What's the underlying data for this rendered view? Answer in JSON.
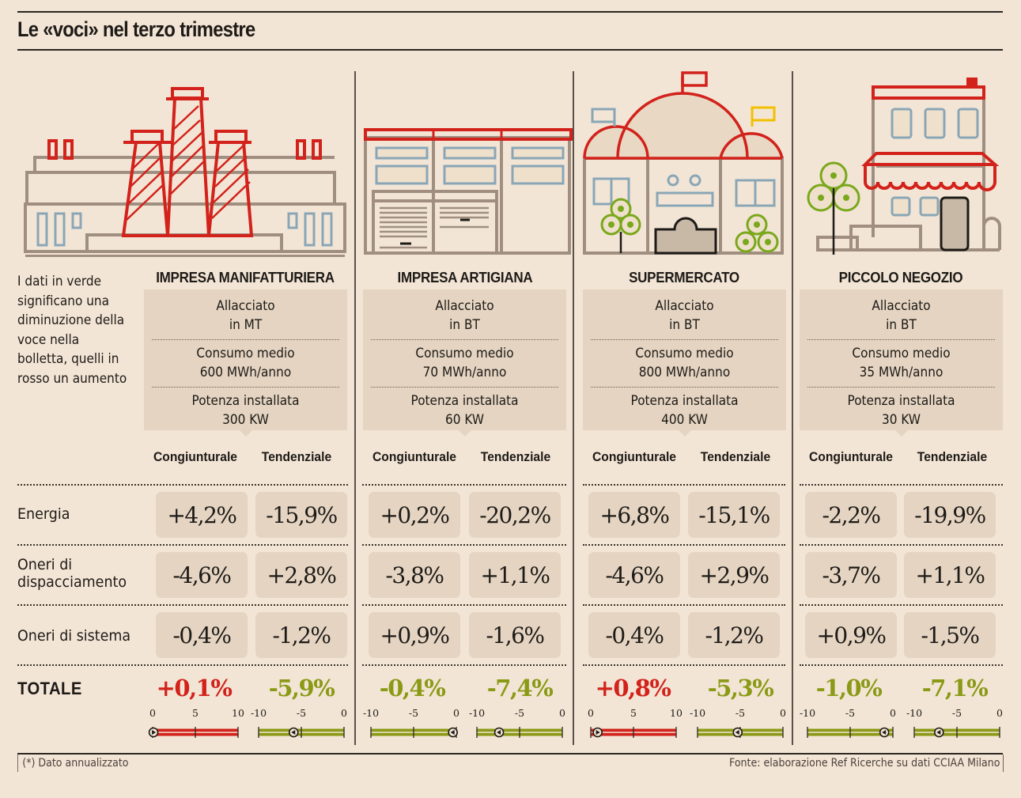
{
  "title": "Le «voci» nel terzo trimestre",
  "legend_note": "I dati in verde significano una diminuzione della voce nella bolletta, quelli in rosso un aumento",
  "colors": {
    "increase": "#d2221b",
    "decrease": "#8a9a16",
    "cell_bg": "#e4d4c1",
    "background": "#f3e5d5"
  },
  "column_headers": {
    "congiunturale": "Congiunturale",
    "tendenziale": "Tendenziale"
  },
  "rows": [
    "Energia",
    "Oneri di dispacciamento",
    "Oneri di sistema"
  ],
  "row_label_lines": {
    "energia": [
      "Energia"
    ],
    "dispacciamento": [
      "Oneri di",
      "dispacciamento"
    ],
    "sistema": [
      "Oneri di sistema"
    ]
  },
  "total_label": "TOTALE",
  "footnote": "(*) Dato annualizzato",
  "source": "Fonte: elaborazione Ref Ricerche su dati CCIAA Milano",
  "chart_data": {
    "type": "table",
    "title": "Le «voci» nel terzo trimestre",
    "units": "%",
    "categories": [
      "Impresa manifatturiera",
      "Impresa artigiana",
      "Supermercato",
      "Piccolo negozio"
    ],
    "rows": [
      "Energia",
      "Oneri di dispacciamento",
      "Oneri di sistema",
      "Totale"
    ],
    "measures": [
      "Congiunturale",
      "Tendenziale"
    ],
    "columns": [
      {
        "name": "IMPRESA MANIFATTURIERA",
        "illustration": "factory-icon",
        "info": [
          [
            "Allacciato",
            "in MT"
          ],
          [
            "Consumo medio",
            "600 MWh/anno"
          ],
          [
            "Potenza installata",
            "300 KW"
          ]
        ],
        "values": {
          "energia": [
            "+4,2%",
            "-15,9%"
          ],
          "dispacciamento": [
            "-4,6%",
            "+2,8%"
          ],
          "sistema": [
            "-0,4%",
            "-1,2%"
          ],
          "totale": [
            "+0,1%",
            "-5,9%"
          ]
        },
        "totale_numeric": [
          0.1,
          -5.9
        ],
        "gauges": [
          {
            "range": [
              0,
              10
            ],
            "ticks": [
              "0",
              "5",
              "10"
            ],
            "value": 0.1,
            "direction": "increase"
          },
          {
            "range": [
              -10,
              0
            ],
            "ticks": [
              "-10",
              "-5",
              "0"
            ],
            "value": -5.9,
            "direction": "decrease"
          }
        ]
      },
      {
        "name": "IMPRESA ARTIGIANA",
        "illustration": "workshop-icon",
        "info": [
          [
            "Allacciato",
            "in BT"
          ],
          [
            "Consumo medio",
            "70 MWh/anno"
          ],
          [
            "Potenza installata",
            "60 KW"
          ]
        ],
        "values": {
          "energia": [
            "+0,2%",
            "-20,2%"
          ],
          "dispacciamento": [
            "-3,8%",
            "+1,1%"
          ],
          "sistema": [
            "+0,9%",
            "-1,6%"
          ],
          "totale": [
            "-0,4%",
            "-7,4%"
          ]
        },
        "totale_numeric": [
          -0.4,
          -7.4
        ],
        "gauges": [
          {
            "range": [
              -10,
              0
            ],
            "ticks": [
              "-10",
              "-5",
              "0"
            ],
            "value": -0.4,
            "direction": "decrease"
          },
          {
            "range": [
              -10,
              0
            ],
            "ticks": [
              "-10",
              "-5",
              "0"
            ],
            "value": -7.4,
            "direction": "decrease"
          }
        ]
      },
      {
        "name": "SUPERMERCATO",
        "illustration": "supermarket-icon",
        "info": [
          [
            "Allacciato",
            "in BT"
          ],
          [
            "Consumo medio",
            "800 MWh/anno"
          ],
          [
            "Potenza installata",
            "400 KW"
          ]
        ],
        "values": {
          "energia": [
            "+6,8%",
            "-15,1%"
          ],
          "dispacciamento": [
            "-4,6%",
            "+2,9%"
          ],
          "sistema": [
            "-0,4%",
            "-1,2%"
          ],
          "totale": [
            "+0,8%",
            "-5,3%"
          ]
        },
        "totale_numeric": [
          0.8,
          -5.3
        ],
        "gauges": [
          {
            "range": [
              0,
              10
            ],
            "ticks": [
              "0",
              "5",
              "10"
            ],
            "value": 0.8,
            "direction": "increase"
          },
          {
            "range": [
              -10,
              0
            ],
            "ticks": [
              "-10",
              "-5",
              "0"
            ],
            "value": -5.3,
            "direction": "decrease"
          }
        ]
      },
      {
        "name": "PICCOLO NEGOZIO",
        "illustration": "small-shop-icon",
        "info": [
          [
            "Allacciato",
            "in BT"
          ],
          [
            "Consumo medio",
            "35 MWh/anno"
          ],
          [
            "Potenza installata",
            "30 KW"
          ]
        ],
        "values": {
          "energia": [
            "-2,2%",
            "-19,9%"
          ],
          "dispacciamento": [
            "-3,7%",
            "+1,1%"
          ],
          "sistema": [
            "+0,9%",
            "-1,5%"
          ],
          "totale": [
            "-1,0%",
            "-7,1%"
          ]
        },
        "totale_numeric": [
          -1.0,
          -7.1
        ],
        "gauges": [
          {
            "range": [
              -10,
              0
            ],
            "ticks": [
              "-10",
              "-5",
              "0"
            ],
            "value": -1.0,
            "direction": "decrease"
          },
          {
            "range": [
              -10,
              0
            ],
            "ticks": [
              "-10",
              "-5",
              "0"
            ],
            "value": -7.1,
            "direction": "decrease"
          }
        ]
      }
    ]
  }
}
